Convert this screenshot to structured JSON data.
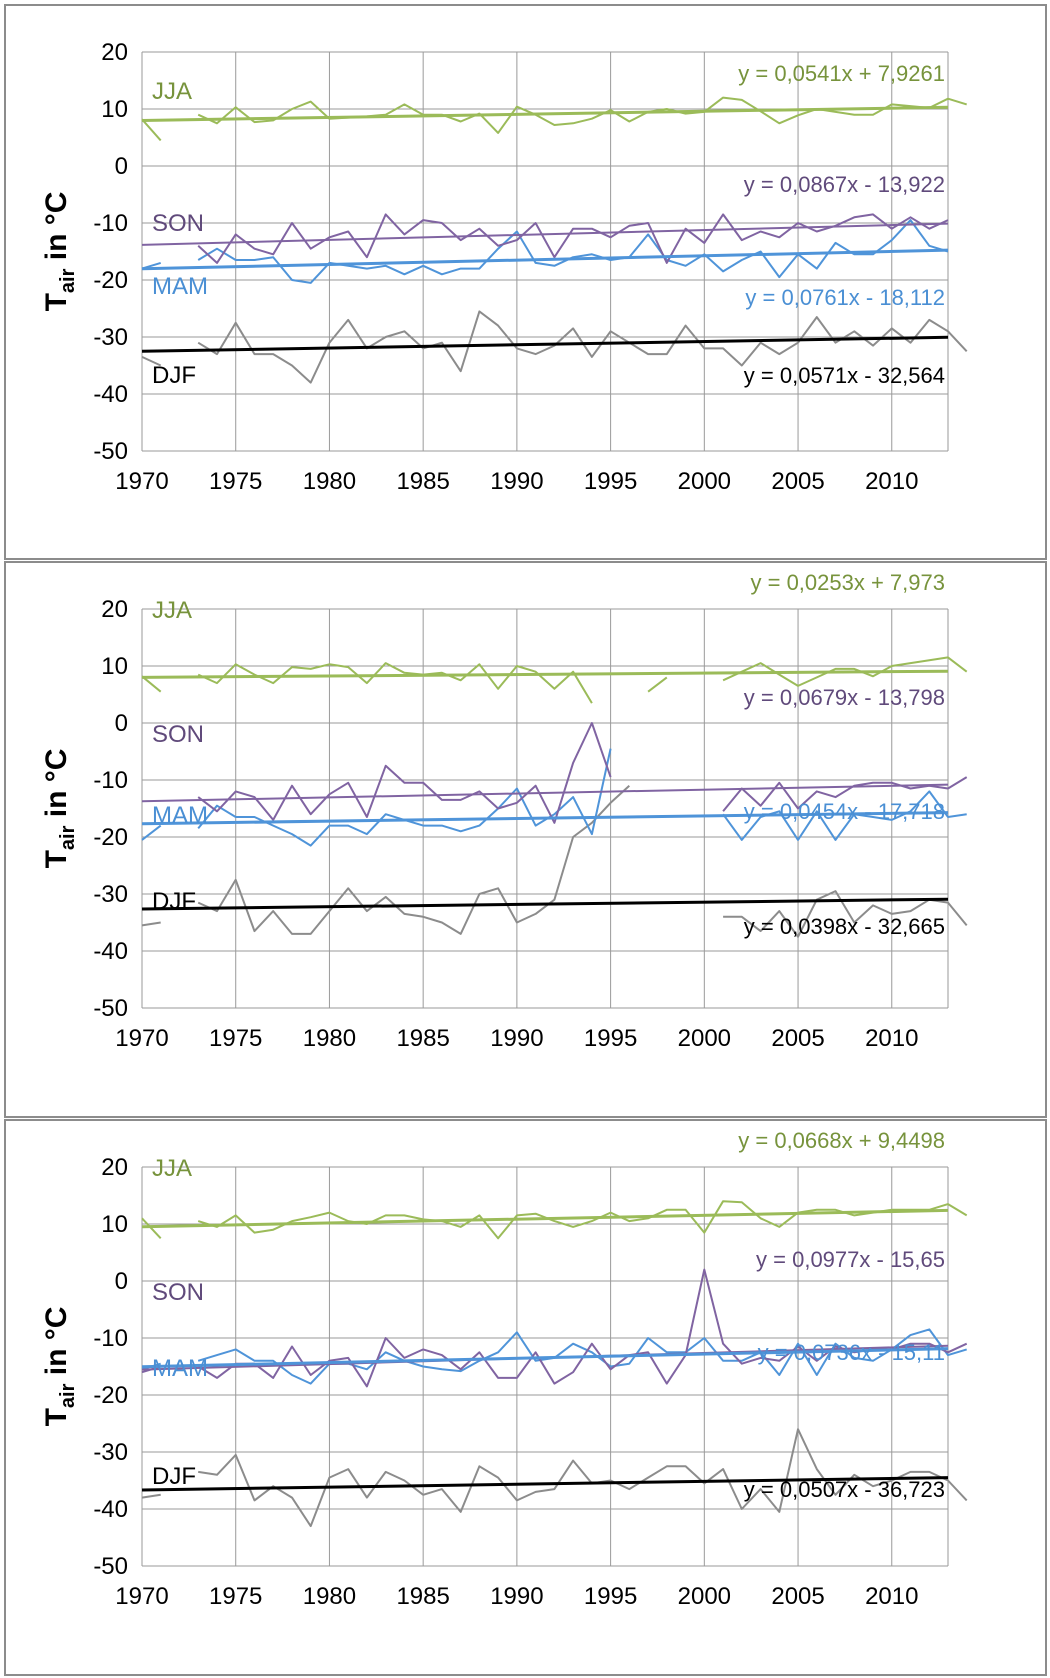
{
  "colors": {
    "JJA": "#9bbb59",
    "SON": "#8064a2",
    "MAM": "#4f94d9",
    "DJF": "#8c8c8c",
    "DJF_trend": "#000000",
    "JJA_text": "#77933c",
    "SON_text": "#604a7b",
    "MAM_text": "#4a8fd4",
    "DJF_text": "#000000",
    "grid": "#9a9a9a"
  },
  "chart_data": [
    {
      "type": "line",
      "ylabel_main": "T",
      "ylabel_sub": "air",
      "ylabel_rest": " in °C",
      "xlim": [
        1970,
        2013
      ],
      "ylim": [
        -50,
        20
      ],
      "x_ticks": [
        1970,
        1975,
        1980,
        1985,
        1990,
        1995,
        2000,
        2005,
        2010
      ],
      "y_ticks": [
        20,
        10,
        0,
        -10,
        -20,
        -30,
        -40,
        -50
      ],
      "grid": true,
      "series": [
        {
          "name": "JJA",
          "start": 1970,
          "values": [
            8.2,
            4.5,
            null,
            9,
            7.5,
            10.3,
            7.7,
            8,
            10,
            11.3,
            8.3,
            8.5,
            8.7,
            9,
            10.8,
            9,
            9,
            7.8,
            9.2,
            5.8,
            10.4,
            9,
            7.2,
            7.5,
            8.3,
            9.8,
            7.8,
            9.5,
            10,
            9.2,
            9.5,
            12,
            11.6,
            9.6,
            7.5,
            8.9,
            10,
            9.5,
            9,
            9,
            10.8,
            10.5,
            10.2,
            11.8,
            10.8
          ]
        },
        {
          "name": "SON",
          "start": 1970,
          "values": [
            null,
            null,
            null,
            -14,
            -17,
            -12,
            -14.5,
            -15.5,
            -10,
            -14.5,
            -12.5,
            -11.5,
            -16,
            -8.5,
            -12,
            -9.5,
            -10,
            -13,
            -11,
            -14,
            -13,
            -10,
            -16,
            -11,
            -11,
            -12.5,
            -10.5,
            -10,
            -17,
            -11,
            -13.5,
            -8.5,
            -13,
            -11.5,
            -12.5,
            -10,
            -11.5,
            -10.5,
            -9,
            -8.5,
            -11,
            -9,
            -11,
            -9.5
          ]
        },
        {
          "name": "MAM",
          "start": 1970,
          "values": [
            -18,
            -17,
            null,
            -16.5,
            -14.5,
            -16.5,
            -16.5,
            -16,
            -20,
            -20.5,
            -17,
            -17.5,
            -18,
            -17.5,
            -19,
            -17.5,
            -19,
            -18,
            -18,
            -14.5,
            -11.5,
            -17,
            -17.5,
            -16,
            -15.5,
            -16.5,
            -16,
            -12,
            -16.5,
            -17.5,
            -15.5,
            -18.5,
            -16.5,
            -15,
            -19.5,
            -15.5,
            -18,
            -13.5,
            -15.5,
            -15.5,
            -13,
            -9.5,
            -14,
            -15
          ]
        },
        {
          "name": "DJF",
          "start": 1970,
          "values": [
            -33.5,
            -35,
            null,
            -31,
            -33,
            -27.5,
            -33,
            -33,
            -35,
            -38,
            -31,
            -27,
            -32,
            -30,
            -29,
            -32,
            -31,
            -36,
            -25.5,
            -28,
            -32,
            -33,
            -31.5,
            -28.5,
            -33.5,
            -29,
            -31,
            -33,
            -33,
            -28,
            -32,
            -32,
            -35,
            -31,
            -33,
            -31,
            -26.5,
            -31,
            -29,
            -31.5,
            -28.5,
            -31,
            -27,
            -29,
            -32.5
          ]
        }
      ],
      "trends": [
        {
          "series": "JJA",
          "slope": 0.0541,
          "intercept": 7.9261,
          "equation": "y = 0,0541x + 7,9261"
        },
        {
          "series": "SON",
          "slope": 0.0867,
          "intercept": -13.922,
          "equation": "y = 0,0867x - 13,922"
        },
        {
          "series": "MAM",
          "slope": 0.0761,
          "intercept": -18.112,
          "equation": "y = 0,0761x - 18,112"
        },
        {
          "series": "DJF",
          "slope": 0.0571,
          "intercept": -32.564,
          "equation": "y = 0,0571x - 32,564"
        }
      ]
    },
    {
      "type": "line",
      "ylabel_main": "T",
      "ylabel_sub": "air",
      "ylabel_rest": " in °C",
      "xlim": [
        1970,
        2013
      ],
      "ylim": [
        -50,
        20
      ],
      "x_ticks": [
        1970,
        1975,
        1980,
        1985,
        1990,
        1995,
        2000,
        2005,
        2010
      ],
      "y_ticks": [
        20,
        10,
        0,
        -10,
        -20,
        -30,
        -40,
        -50
      ],
      "grid": true,
      "series": [
        {
          "name": "JJA",
          "start": 1970,
          "values": [
            8.2,
            5.5,
            null,
            8.5,
            7,
            10.3,
            8.5,
            7,
            9.8,
            9.5,
            10.3,
            9.8,
            7,
            10.5,
            8.8,
            8.5,
            8.8,
            7.5,
            10.3,
            6,
            10,
            9,
            6,
            9,
            3.5,
            null,
            null,
            5.5,
            8,
            null,
            null,
            7.5,
            9,
            10.5,
            8.5,
            6.5,
            8,
            9.5,
            9.5,
            8.2,
            10,
            10.5,
            11,
            11.5,
            9
          ]
        },
        {
          "name": "SON",
          "start": 1970,
          "values": [
            null,
            null,
            null,
            -13,
            -15.5,
            -12,
            -13,
            -17,
            -11,
            -16,
            -12.5,
            -10.5,
            -16.5,
            -7.5,
            -10.5,
            -10.5,
            -13.5,
            -13.5,
            -12,
            -15,
            -14,
            -11,
            -17.5,
            -7,
            0,
            -9.5,
            null,
            null,
            null,
            null,
            null,
            -15.5,
            -11.5,
            -14.5,
            -10.5,
            -15,
            -12,
            -13,
            -11,
            -10.5,
            -10.5,
            -11.5,
            -11,
            -11.5,
            -9.5
          ]
        },
        {
          "name": "MAM",
          "start": 1970,
          "values": [
            -20.5,
            -18,
            null,
            -18.5,
            -14.5,
            -16.5,
            -16.5,
            -18,
            -19.5,
            -21.5,
            -18,
            -18,
            -19.5,
            -16,
            -17,
            -18,
            -18,
            -19,
            -18,
            -15,
            -11.5,
            -18,
            -16,
            -13,
            -19.5,
            -4.5,
            null,
            null,
            null,
            null,
            null,
            -16,
            -20.5,
            -16.5,
            -15.5,
            -20.5,
            -15.5,
            -20.5,
            -16,
            -16.5,
            -17,
            -15.5,
            -12,
            -16.5,
            -16
          ]
        },
        {
          "name": "DJF",
          "start": 1970,
          "values": [
            -35.5,
            -35,
            null,
            -31.5,
            -33,
            -27.5,
            -36.5,
            -33,
            -37,
            -37,
            -33,
            -29,
            -33,
            -30.5,
            -33.5,
            -34,
            -35,
            -37,
            -30,
            -29,
            -35,
            -33.5,
            -31,
            -20,
            -17.5,
            -14,
            -11,
            null,
            null,
            null,
            null,
            -34,
            -34,
            -36.5,
            -33,
            -37.5,
            -31,
            -29.5,
            -35,
            -32,
            -33.5,
            -33,
            -31,
            -31.5,
            -35.5
          ]
        }
      ],
      "trends": [
        {
          "series": "JJA",
          "slope": 0.0253,
          "intercept": 7.973,
          "equation": "y = 0,0253x + 7,973"
        },
        {
          "series": "SON",
          "slope": 0.0679,
          "intercept": -13.798,
          "equation": "y = 0,0679x - 13,798"
        },
        {
          "series": "MAM",
          "slope": 0.0454,
          "intercept": -17.718,
          "equation": "y = 0,0454x - 17,718"
        },
        {
          "series": "DJF",
          "slope": 0.0398,
          "intercept": -32.665,
          "equation": "y = 0,0398x - 32,665"
        }
      ]
    },
    {
      "type": "line",
      "ylabel_main": "T",
      "ylabel_sub": "air",
      "ylabel_rest": " in °C",
      "xlim": [
        1970,
        2013
      ],
      "ylim": [
        -50,
        20
      ],
      "x_ticks": [
        1970,
        1975,
        1980,
        1985,
        1990,
        1995,
        2000,
        2005,
        2010
      ],
      "y_ticks": [
        20,
        10,
        0,
        -10,
        -20,
        -30,
        -40,
        -50
      ],
      "grid": true,
      "series": [
        {
          "name": "JJA",
          "start": 1970,
          "values": [
            11,
            7.5,
            null,
            10.5,
            9.5,
            11.5,
            8.5,
            9,
            10.5,
            11.2,
            12,
            10.5,
            10,
            11.5,
            11.5,
            10.8,
            10.5,
            9.5,
            11.5,
            7.5,
            11.5,
            11.8,
            10.5,
            9.5,
            10.5,
            12,
            10.5,
            11,
            12.5,
            12.5,
            8.5,
            14,
            13.8,
            11,
            9.5,
            12,
            12.5,
            12.5,
            11.5,
            12,
            12.5,
            12.5,
            12.5,
            13.5,
            11.5
          ]
        },
        {
          "name": "SON",
          "start": 1970,
          "values": [
            -16,
            -15,
            null,
            -15,
            -17,
            -14.5,
            -14.5,
            -17,
            -11.5,
            -16.5,
            -14,
            -13.5,
            -18.5,
            -10,
            -13.5,
            -12,
            -13,
            -15.5,
            -12.5,
            -17,
            -17,
            -12.5,
            -18,
            -16,
            -11,
            -15.5,
            -13,
            -12.5,
            -18,
            -13,
            2,
            -11,
            -14.5,
            -13.5,
            -14,
            -11.5,
            -14,
            -11.5,
            -12.5,
            -12,
            -12,
            -11,
            -11,
            -12.5,
            -11
          ]
        },
        {
          "name": "MAM",
          "start": 1970,
          "values": [
            -15.5,
            -14.5,
            null,
            -14,
            -13,
            -12,
            -14,
            -14,
            -16.5,
            -18,
            -14.5,
            -14.5,
            -15.5,
            -12.5,
            -14,
            -15,
            -15.5,
            -15.8,
            -14,
            -12.5,
            -9,
            -14,
            -13.5,
            -11,
            -12.5,
            -15,
            -14.5,
            -10,
            -12.5,
            -12.5,
            -10,
            -14,
            -14,
            -12.5,
            -16.5,
            -11,
            -16.5,
            -11,
            -13.5,
            -14,
            -12,
            -9.5,
            -8.5,
            -13,
            -12
          ]
        },
        {
          "name": "DJF",
          "start": 1970,
          "values": [
            -38,
            -37.5,
            null,
            -33.5,
            -34,
            -30.5,
            -38.5,
            -36,
            -38,
            -43,
            -34.5,
            -33,
            -38,
            -33.5,
            -35,
            -37.5,
            -36.5,
            -40.5,
            -32.5,
            -34.5,
            -38.5,
            -37,
            -36.5,
            -31.5,
            -35.5,
            -35,
            -36.5,
            -34.5,
            -32.5,
            -32.5,
            -35.5,
            -33,
            -40,
            -36.5,
            -40.5,
            -26,
            -33,
            -37.5,
            -34,
            -36,
            -35,
            -33.5,
            -33.5,
            -35,
            -38.5
          ]
        }
      ],
      "trends": [
        {
          "series": "JJA",
          "slope": 0.0668,
          "intercept": 9.4498,
          "equation": "y = 0,0668x + 9,4498"
        },
        {
          "series": "SON",
          "slope": 0.0977,
          "intercept": -15.65,
          "equation": "y = 0,0977x - 15,65"
        },
        {
          "series": "MAM",
          "slope": 0.0736,
          "intercept": -15.11,
          "equation": "y = 0,0736x - 15,11"
        },
        {
          "series": "DJF",
          "slope": 0.0507,
          "intercept": -36.723,
          "equation": "y = 0,0507x - 36,723"
        }
      ]
    }
  ]
}
